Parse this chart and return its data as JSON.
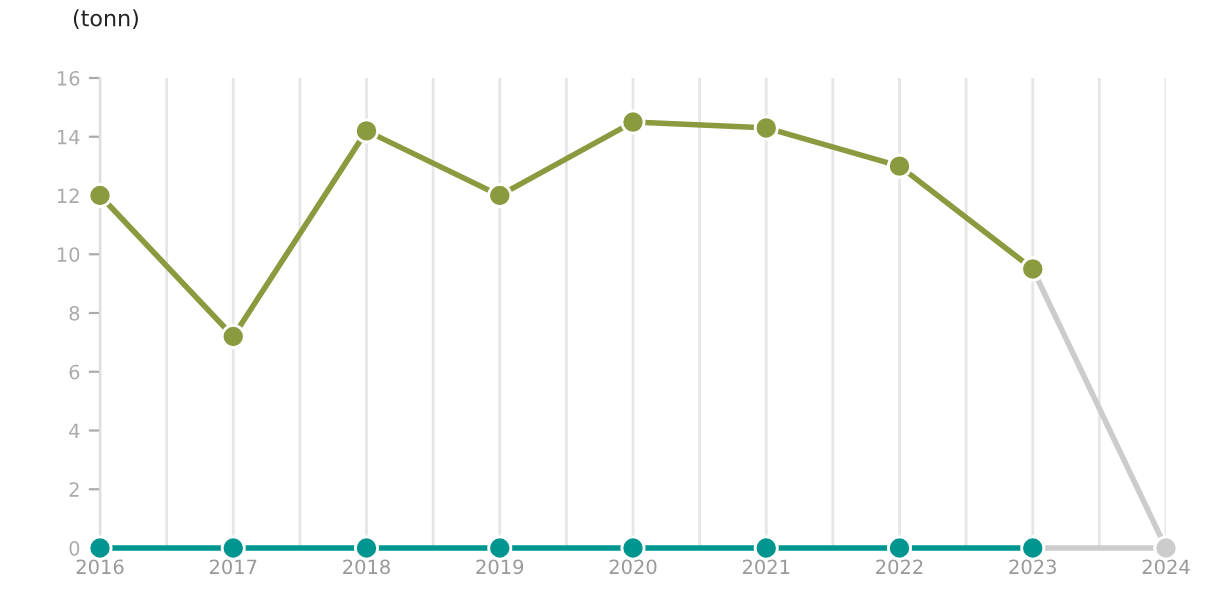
{
  "chart_data": {
    "type": "line",
    "ylabel": "(tonn)",
    "x": [
      2016,
      2017,
      2018,
      2019,
      2020,
      2021,
      2022,
      2023,
      2024
    ],
    "series": [
      {
        "color": "#8a9a3e",
        "values": [
          12,
          7.2,
          14.2,
          12,
          14.5,
          14.3,
          13,
          9.5,
          null
        ]
      },
      {
        "color": "#cccccc",
        "values": [
          null,
          null,
          null,
          null,
          null,
          null,
          null,
          9.5,
          0
        ]
      },
      {
        "color": "#00968f",
        "values": [
          0,
          0,
          0,
          0,
          0,
          0,
          0,
          0,
          null
        ]
      },
      {
        "color": "#cccccc",
        "values": [
          null,
          null,
          null,
          null,
          null,
          null,
          null,
          0,
          0
        ]
      }
    ],
    "xlim": [
      2016,
      2024
    ],
    "xticks": [
      2016,
      {
        "value": 2016.5,
        "label": null
      },
      2017,
      {
        "value": 2017.5,
        "label": null
      },
      2018,
      {
        "value": 2018.5,
        "label": null
      },
      2019,
      {
        "value": 2019.5,
        "label": null
      },
      2020,
      {
        "value": 2020.5,
        "label": null
      },
      2021,
      {
        "value": 2021.5,
        "label": null
      },
      2022,
      {
        "value": 2022.5,
        "label": null
      },
      2023,
      {
        "value": 2023.5,
        "label": null
      },
      2024
    ],
    "ylim": [
      0,
      16
    ],
    "yticks": [
      0,
      2,
      4,
      6,
      8,
      10,
      12,
      14,
      16
    ],
    "grid": "x",
    "marker": "circle",
    "line_style": "solid",
    "legend": false
  }
}
